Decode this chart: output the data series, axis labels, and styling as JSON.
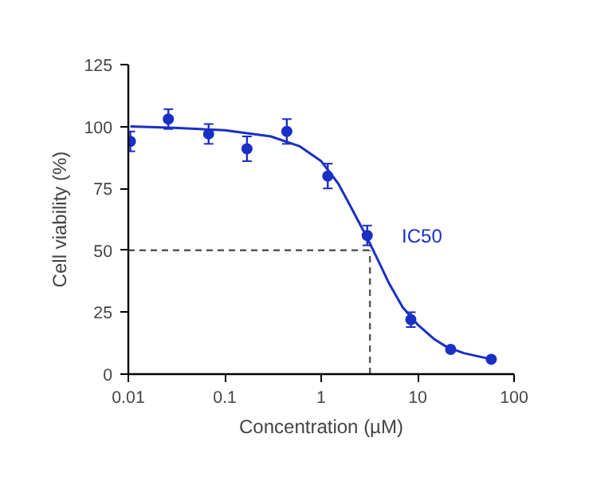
{
  "chart_data": {
    "type": "scatter",
    "xlabel": "Concentration (µM)",
    "ylabel": "Cell viability (%)",
    "log": "x",
    "xlim": [
      0.01,
      100
    ],
    "ylim": [
      0,
      125
    ],
    "xticks": [
      0.01,
      0.1,
      1,
      10,
      100
    ],
    "yticks": [
      0,
      25,
      50,
      75,
      100,
      125
    ],
    "grid": false,
    "marker": "circle",
    "series": [
      {
        "color": "#1a2fc4",
        "x": [
          0.0105,
          0.026,
          0.068,
          0.17,
          0.44,
          1.17,
          3.0,
          8.5,
          22,
          58
        ],
        "values": [
          94,
          103,
          97,
          91,
          98,
          80,
          56,
          22,
          10,
          6
        ],
        "errors": [
          4,
          4,
          4,
          5,
          5,
          5,
          4,
          3,
          null,
          null
        ]
      },
      {
        "type": "line",
        "color": "#1a2fc4",
        "line_style": "solid",
        "marker": "none",
        "x": [
          0.0105,
          0.03,
          0.1,
          0.3,
          0.6,
          1,
          1.5,
          2,
          3,
          4,
          5,
          7,
          10,
          15,
          20,
          30,
          58
        ],
        "values": [
          100,
          99.5,
          98.5,
          96,
          92,
          86,
          77,
          68,
          55,
          45,
          37,
          27,
          20,
          14,
          11,
          8.5,
          6
        ]
      }
    ],
    "ref_lines": [
      {
        "axis": "y",
        "value": 50,
        "color": "#555555",
        "line_style": "dashed"
      },
      {
        "axis": "x",
        "value": 3.2,
        "color": "#555555",
        "line_style": "dashed"
      }
    ],
    "annotations": [
      "IC50"
    ]
  }
}
